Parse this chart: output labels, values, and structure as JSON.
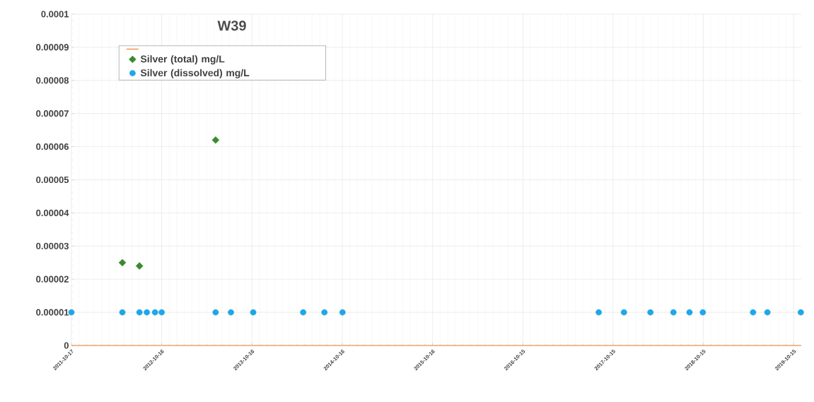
{
  "chart_data": {
    "type": "scatter",
    "title": "W39",
    "xlim": [
      "2011-10-17",
      "2019-11-15"
    ],
    "xticks": [
      "2011-10-17",
      "2012-10-16",
      "2013-10-16",
      "2014-10-16",
      "2015-10-16",
      "2016-10-15",
      "2017-10-15",
      "2018-10-15",
      "2019-10-15"
    ],
    "ylim": [
      0,
      0.0001
    ],
    "yticks": [
      {
        "value": 0,
        "label": "0"
      },
      {
        "value": 1e-05,
        "label": "0.00001"
      },
      {
        "value": 2e-05,
        "label": "0.00002"
      },
      {
        "value": 3e-05,
        "label": "0.00003"
      },
      {
        "value": 4e-05,
        "label": "0.00004"
      },
      {
        "value": 5e-05,
        "label": "0.00005"
      },
      {
        "value": 6e-05,
        "label": "0.00006"
      },
      {
        "value": 7e-05,
        "label": "0.00007"
      },
      {
        "value": 8e-05,
        "label": "0.00008"
      },
      {
        "value": 9e-05,
        "label": "0.00009"
      },
      {
        "value": 0.0001,
        "label": "0.0001"
      }
    ],
    "grid": true,
    "legend": "top left",
    "series": [
      {
        "type": "line",
        "color": "#f07f2a",
        "marker": "none",
        "x": [
          "2011-10-17",
          "2019-11-15"
        ],
        "values": [
          0,
          0
        ]
      },
      {
        "name": "Silver (total) mg/L",
        "color": "#3a8a2e",
        "marker": "diamond",
        "x": [
          "2012-05-10",
          "2012-07-18",
          "2013-05-22"
        ],
        "values": [
          2.5e-05,
          2.4e-05,
          6.2e-05
        ]
      },
      {
        "name": "Silver (dissolved) mg/L",
        "color": "#1ea7e8",
        "marker": "circle",
        "x": [
          "2011-10-17",
          "2012-05-10",
          "2012-07-18",
          "2012-08-17",
          "2012-09-19",
          "2012-10-16",
          "2013-05-22",
          "2013-07-23",
          "2013-10-21",
          "2014-05-11",
          "2014-08-05",
          "2014-10-17",
          "2017-08-18",
          "2017-11-28",
          "2018-03-15",
          "2018-06-16",
          "2018-08-20",
          "2018-10-13",
          "2019-05-04",
          "2019-07-01",
          "2019-11-13"
        ],
        "values": [
          1e-05,
          1e-05,
          1e-05,
          1e-05,
          1e-05,
          1e-05,
          1e-05,
          1e-05,
          1e-05,
          1e-05,
          1e-05,
          1e-05,
          1e-05,
          1e-05,
          1e-05,
          1e-05,
          1e-05,
          1e-05,
          1e-05,
          1e-05,
          1e-05
        ]
      }
    ]
  }
}
